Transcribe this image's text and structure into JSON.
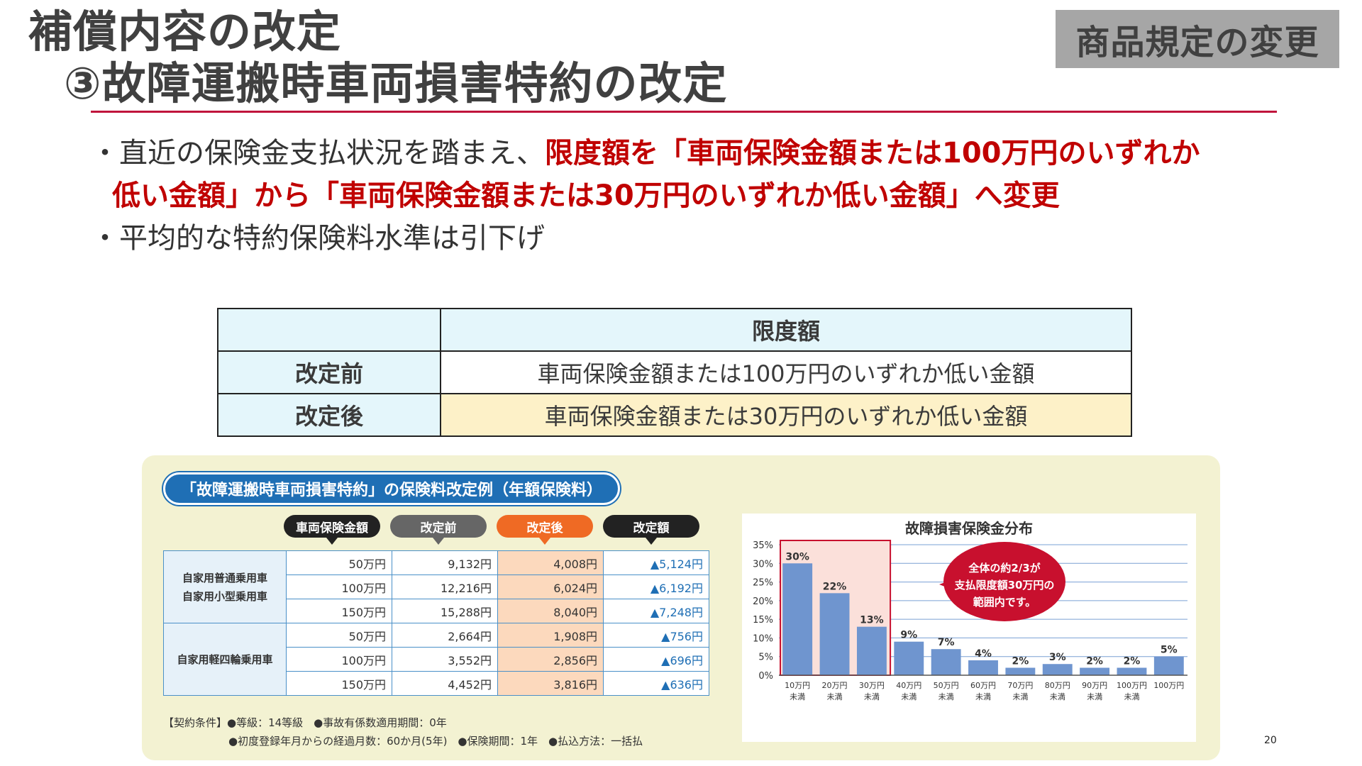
{
  "title": {
    "line1": "補償内容の改定",
    "line2": "③故障運搬時車両損害特約の改定"
  },
  "tag": "商品規定の変更",
  "bullets": {
    "b1_plain": "・直近の保険金支払状況を踏まえ、",
    "b1_red": "限度額を「車両保険金額または100万円のいずれか",
    "b1_red2": "低い金額」から「車両保険金額または30万円のいずれか低い金額」へ変更",
    "b2": "・平均的な特約保険料水準は引下げ"
  },
  "limit_table": {
    "header": "限度額",
    "rows": [
      {
        "label": "改定前",
        "value": "車両保険金額または100万円のいずれか低い金額"
      },
      {
        "label": "改定後",
        "value": "車両保険金額または30万円のいずれか低い金額"
      }
    ]
  },
  "premium": {
    "title": "「故障運搬時車両損害特約」の保険料改定例（年額保険料）",
    "columns": [
      "車両保険金額",
      "改定前",
      "改定後",
      "改定額"
    ],
    "groups": [
      {
        "name": "自家用普通乗用車\n自家用小型乗用車",
        "rows": [
          [
            "50万円",
            "9,132円",
            "4,008円",
            "▲5,124円"
          ],
          [
            "100万円",
            "12,216円",
            "6,024円",
            "▲6,192円"
          ],
          [
            "150万円",
            "15,288円",
            "8,040円",
            "▲7,248円"
          ]
        ]
      },
      {
        "name": "自家用軽四輪乗用車",
        "rows": [
          [
            "50万円",
            "2,664円",
            "1,908円",
            "▲756円"
          ],
          [
            "100万円",
            "3,552円",
            "2,856円",
            "▲696円"
          ],
          [
            "150万円",
            "4,452円",
            "3,816円",
            "▲636円"
          ]
        ]
      }
    ],
    "conditions_line1": "【契約条件】●等級：14等級　●事故有係数適用期間：0年",
    "conditions_line2": "●初度登録年月からの経過月数：60か月(5年)　●保険期間：1年　●払込方法：一括払"
  },
  "chart_data": {
    "type": "bar",
    "title": "故障損害保険金分布",
    "categories": [
      "10万円\n未満",
      "20万円\n未満",
      "30万円\n未満",
      "40万円\n未満",
      "50万円\n未満",
      "60万円\n未満",
      "70万円\n未満",
      "80万円\n未満",
      "90万円\n未満",
      "100万円\n未満",
      "100万円"
    ],
    "values": [
      30,
      22,
      13,
      9,
      7,
      4,
      2,
      3,
      2,
      2,
      5
    ],
    "labels": [
      "30%",
      "22%",
      "13%",
      "9%",
      "7%",
      "4%",
      "2%",
      "3%",
      "2%",
      "2%",
      "5%"
    ],
    "ylim": [
      0,
      35
    ],
    "yticks": [
      "0%",
      "5%",
      "10%",
      "15%",
      "20%",
      "25%",
      "30%",
      "35%"
    ],
    "highlight_first_n": 3,
    "callout": "全体の約2/3が支払限度額30万円の範囲内です。",
    "callout_line1": "全体の約2/3が",
    "callout_line2": "支払限度額30万円の",
    "callout_line3": "範囲内です。",
    "colors": {
      "bar": "#6f95cf",
      "highlight": "#fbe0da",
      "highlight_border": "#c8102e",
      "callout": "#c8102e"
    }
  },
  "page_number": "20"
}
